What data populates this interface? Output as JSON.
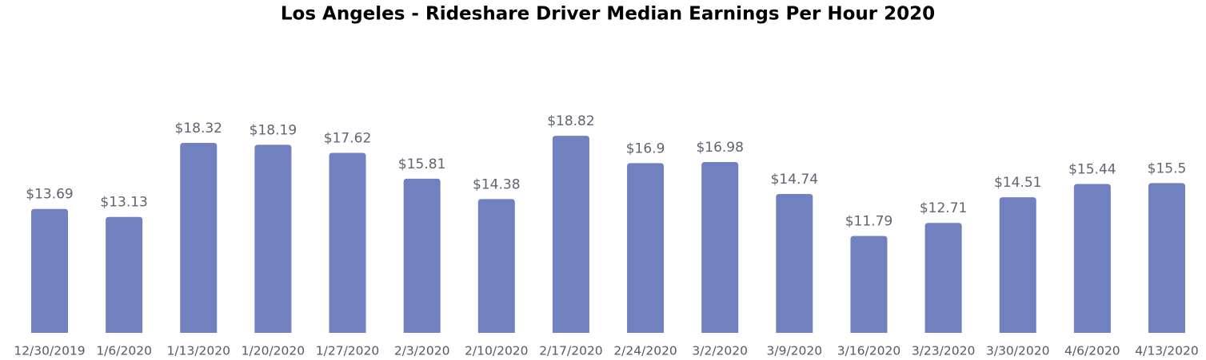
{
  "chart_data": {
    "type": "bar",
    "title": "Los Angeles - Rideshare Driver Median Earnings Per Hour 2020",
    "categories": [
      "12/30/2019",
      "1/6/2020",
      "1/13/2020",
      "1/20/2020",
      "1/27/2020",
      "2/3/2020",
      "2/10/2020",
      "2/17/2020",
      "2/24/2020",
      "3/2/2020",
      "3/9/2020",
      "3/16/2020",
      "3/23/2020",
      "3/30/2020",
      "4/6/2020",
      "4/13/2020"
    ],
    "values": [
      13.69,
      13.13,
      18.32,
      18.19,
      17.62,
      15.81,
      14.38,
      18.82,
      16.9,
      16.98,
      14.74,
      11.79,
      12.71,
      14.51,
      15.44,
      15.5
    ],
    "value_labels": [
      "$13.69",
      "$13.13",
      "$18.32",
      "$18.19",
      "$17.62",
      "$15.81",
      "$14.38",
      "$18.82",
      "$16.9",
      "$16.98",
      "$14.74",
      "$11.79",
      "$12.71",
      "$14.51",
      "$15.44",
      "$15.5"
    ],
    "color": "#7180be",
    "ylim": [
      5,
      20
    ]
  }
}
